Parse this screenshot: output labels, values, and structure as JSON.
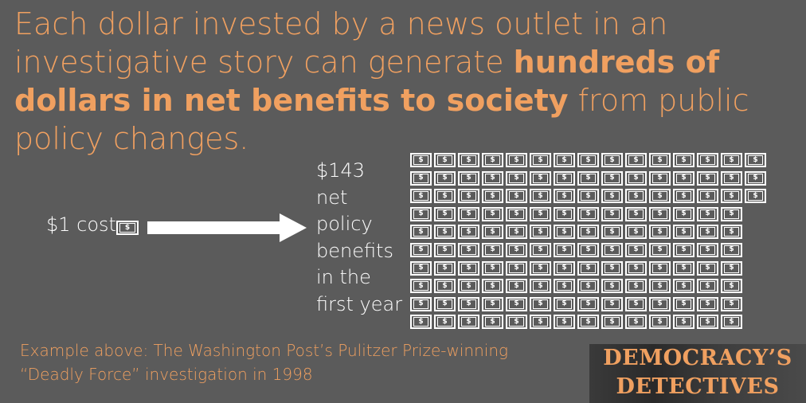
{
  "headline": {
    "part1": "Each dollar invested by a news outlet in an investigative story can generate ",
    "bold": "hundreds of dollars in net benefits to society",
    "part2": " from public policy changes."
  },
  "cost": {
    "label": "$1 cost",
    "bill_symbol": "$"
  },
  "arrow_icon": "right-arrow-icon",
  "benefit": {
    "label": "$143\nnet\npolicy\nbenefits\nin the\nfirst year",
    "bills_per_row": [
      15,
      15,
      15,
      14,
      14,
      14,
      14,
      14,
      14,
      14
    ],
    "total_bills": 143
  },
  "footnote": "Example above: The Washington Post’s Pulitzer Prize-winning “Deadly Force” investigation in 1998",
  "logo": {
    "line1": "DEMOCRACY’S",
    "line2": "DETECTIVES"
  },
  "colors": {
    "background": "#5b5b5b",
    "accent": "#f0a060",
    "text": "#ffffff"
  }
}
